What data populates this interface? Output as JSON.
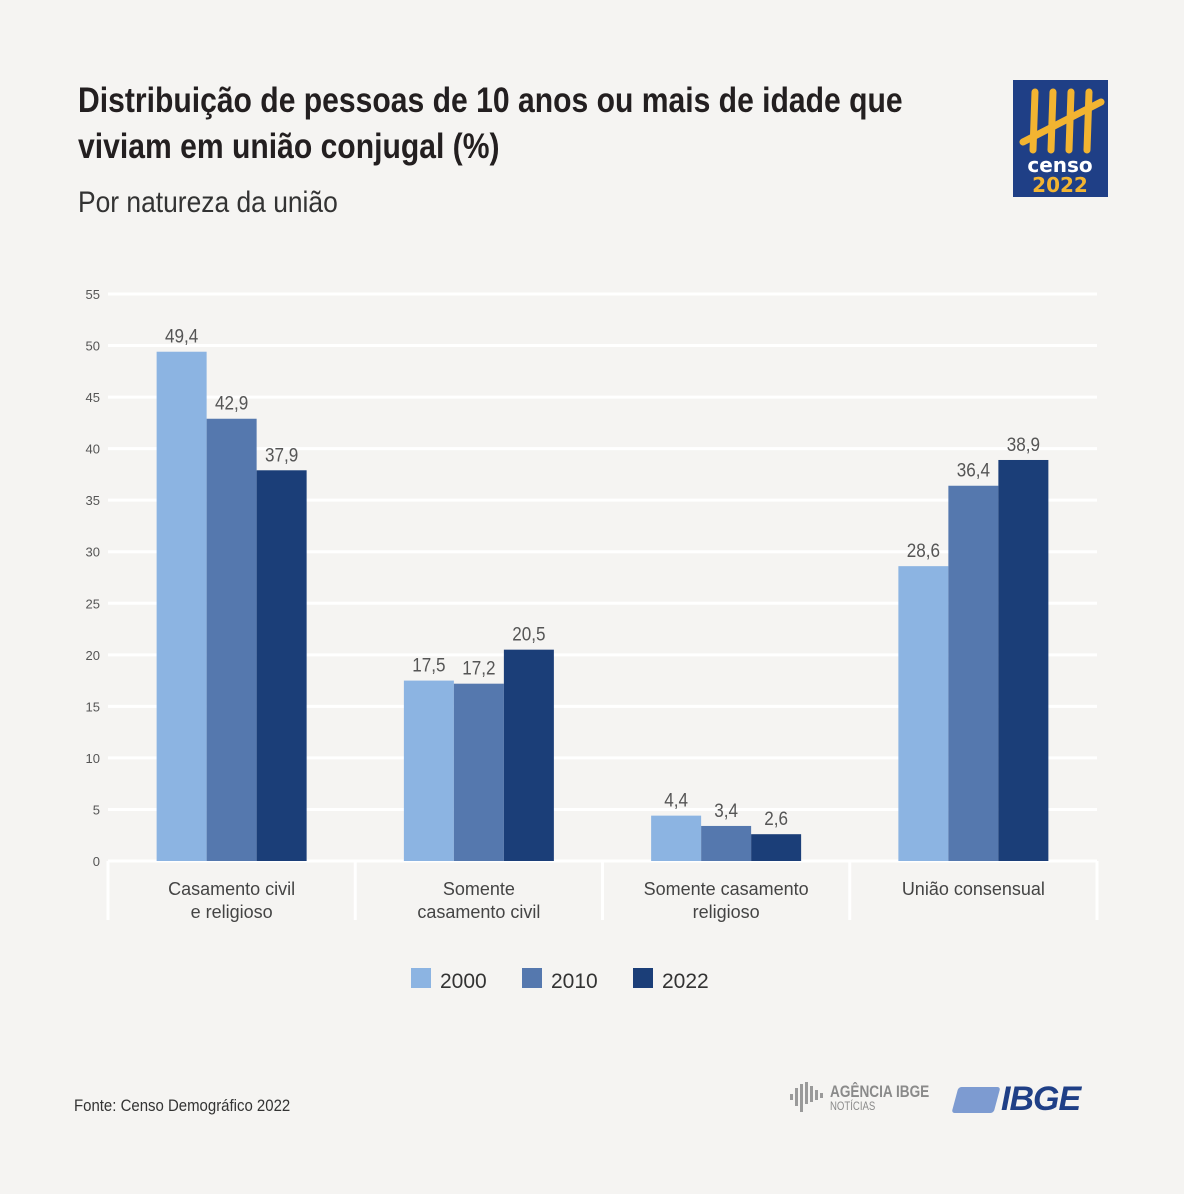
{
  "title": "Distribuição de pessoas de 10 anos ou mais de idade que viviam em união conjugal (%)",
  "subtitle": "Por natureza da união",
  "logo": {
    "line1": "censo",
    "line2": "2022"
  },
  "source": "Fonte: Censo Demográfico 2022",
  "footer": {
    "agencia_line1": "AGÊNCIA IBGE",
    "agencia_line2": "NOTÍCIAS",
    "ibge": "IBGE"
  },
  "colors": {
    "2000": "#8cb4e2",
    "2010": "#5578ae",
    "2022": "#1b3e78",
    "grid": "#ffffff",
    "background": "#f5f4f2"
  },
  "chart_data": {
    "type": "bar",
    "categories": [
      [
        "Casamento civil",
        "e religioso"
      ],
      [
        "Somente",
        "casamento civil"
      ],
      [
        "Somente casamento",
        "religioso"
      ],
      [
        "União consensual"
      ]
    ],
    "series": [
      {
        "name": "2000",
        "values": [
          49.4,
          17.5,
          4.4,
          28.6
        ],
        "labels": [
          "49,4",
          "17,5",
          "4,4",
          "28,6"
        ]
      },
      {
        "name": "2010",
        "values": [
          42.9,
          17.2,
          3.4,
          36.4
        ],
        "labels": [
          "42,9",
          "17,2",
          "3,4",
          "36,4"
        ]
      },
      {
        "name": "2022",
        "values": [
          37.9,
          20.5,
          2.6,
          38.9
        ],
        "labels": [
          "37,9",
          "20,5",
          "2,6",
          "38,9"
        ]
      }
    ],
    "yticks": [
      0,
      5,
      10,
      15,
      20,
      25,
      30,
      35,
      40,
      45,
      50,
      55
    ],
    "ylim": [
      0,
      55
    ],
    "grid": true,
    "legend": "bottom-center"
  }
}
